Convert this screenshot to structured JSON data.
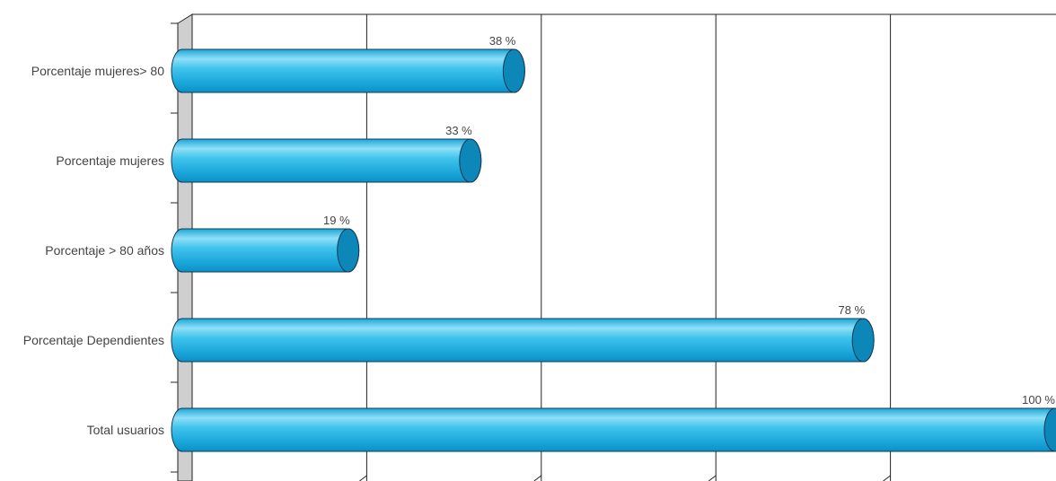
{
  "chart_data": {
    "type": "bar",
    "orientation": "horizontal",
    "title": "",
    "xlabel": "",
    "ylabel": "",
    "categories": [
      "Porcentaje mujeres> 80",
      "Porcentaje mujeres",
      "Porcentaje > 80 años",
      "Porcentaje Dependientes",
      "Total usuarios"
    ],
    "values": [
      38,
      33,
      19,
      78,
      100
    ],
    "data_labels": [
      "38 %",
      "33 %",
      "19 %",
      "78 %",
      "100 %"
    ],
    "xlim": [
      0,
      100
    ],
    "grid": true,
    "legend": "none",
    "colors": {
      "bar_light": "#8fe0f7",
      "bar_mid": "#27b6e6",
      "bar_dark": "#0b8fc4",
      "bar_cap": "#0d86b8",
      "outline": "#123a55",
      "wall": "#cfcfcf",
      "grid": "#222222"
    }
  }
}
